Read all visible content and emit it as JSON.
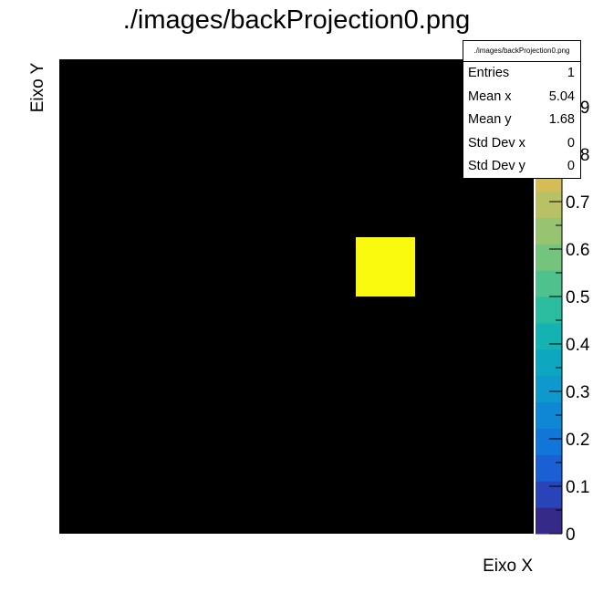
{
  "chart_data": {
    "type": "heatmap",
    "title": "./images/backProjection0.png",
    "xlabel": "Eixo X",
    "ylabel": "Eixo Y",
    "background_color": "#000000",
    "nx": 8,
    "ny": 8,
    "cells": [
      {
        "ix": 5,
        "iy": 4,
        "value": 1
      }
    ],
    "zlim": [
      0,
      1
    ],
    "z_ticks": [
      "0",
      "0.1",
      "0.2",
      "0.3",
      "0.4",
      "0.5",
      "0.6",
      "0.7",
      "0.8",
      "0.9"
    ],
    "palette": [
      "#352a87",
      "#2844b8",
      "#1a5fd4",
      "#1176d8",
      "#0e88d4",
      "#0e98cb",
      "#0da6c0",
      "#14b2b0",
      "#2bbb9f",
      "#4ec18c",
      "#75c47e",
      "#98c471",
      "#b8c164",
      "#d4bd57",
      "#ecbd48",
      "#fbc834",
      "#f9dc25",
      "#f9f90e"
    ]
  },
  "stats": {
    "name": "./images/backProjection0.png",
    "rows": [
      {
        "label": "Entries",
        "value": "1"
      },
      {
        "label": "Mean x",
        "value": "5.04"
      },
      {
        "label": "Mean y",
        "value": "1.68"
      },
      {
        "label": "Std Dev x",
        "value": "0"
      },
      {
        "label": "Std Dev y",
        "value": "0"
      }
    ]
  }
}
